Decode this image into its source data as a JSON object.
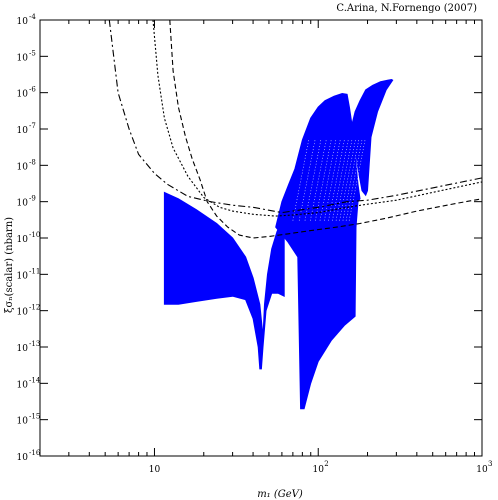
{
  "chart_data": {
    "type": "scatter",
    "title": "",
    "credit": "C.Arina, N.Fornengo (2007)",
    "xlabel": "m₁ (GeV)",
    "ylabel": "ξσₙ(scalar) (nbarn)",
    "x_scale": "log",
    "y_scale": "log",
    "xlim": [
      2,
      1000
    ],
    "ylim": [
      1e-16,
      0.0001
    ],
    "x_tick_values": [
      10,
      100,
      1000
    ],
    "x_tick_labels": [
      "10",
      "10",
      "10"
    ],
    "x_tick_exps": [
      "",
      "2",
      "3"
    ],
    "y_tick_values": [
      1e-16,
      1e-15,
      1e-14,
      1e-13,
      1e-12,
      1e-11,
      1e-10,
      1e-09,
      1e-08,
      1e-07,
      1e-06,
      1e-05,
      0.0001
    ],
    "y_tick_labels": [
      "10",
      "10",
      "10",
      "10",
      "10",
      "10",
      "10",
      "10",
      "10",
      "10",
      "10",
      "10",
      "10"
    ],
    "y_tick_exps": [
      "-16",
      "-15",
      "-14",
      "-13",
      "-12",
      "-11",
      "-10",
      "-9",
      "-8",
      "-7",
      "-6",
      "-5",
      "-4"
    ],
    "fill_color": "#0000ff",
    "regions": [
      {
        "part": "light mass band",
        "upper": [
          [
            11.5,
            1.8e-09
          ],
          [
            14,
            1.2e-09
          ],
          [
            18,
            6e-10
          ],
          [
            24,
            2.5e-10
          ],
          [
            30,
            1e-10
          ],
          [
            36,
            3e-11
          ],
          [
            40,
            8e-12
          ],
          [
            44,
            1.5e-12
          ],
          [
            46,
            2e-13
          ],
          [
            47,
            1.5e-12
          ],
          [
            49,
            1e-11
          ],
          [
            52,
            5e-11
          ],
          [
            56,
            1.5e-10
          ],
          [
            62,
            4e-10
          ]
        ],
        "lower": [
          [
            11.5,
            1.5e-12
          ],
          [
            14,
            1.5e-12
          ],
          [
            18,
            1.8e-12
          ],
          [
            24,
            2.2e-12
          ],
          [
            30,
            2.5e-12
          ],
          [
            36,
            2e-12
          ],
          [
            40,
            6e-13
          ],
          [
            43,
            1e-13
          ],
          [
            44,
            2.5e-14
          ],
          [
            45,
            2.5e-14
          ],
          [
            46,
            1e-13
          ],
          [
            48,
            1e-12
          ],
          [
            52,
            3e-12
          ],
          [
            57,
            3e-12
          ],
          [
            62,
            2.5e-12
          ]
        ]
      },
      {
        "part": "heavy mass band",
        "upper": [
          [
            55,
            2e-10
          ],
          [
            60,
            1e-09
          ],
          [
            66,
            3e-09
          ],
          [
            72,
            8e-09
          ],
          [
            80,
            5e-08
          ],
          [
            90,
            2e-07
          ],
          [
            100,
            4e-07
          ],
          [
            110,
            6e-07
          ],
          [
            125,
            8e-07
          ],
          [
            140,
            9.5e-07
          ],
          [
            150,
            9e-07
          ],
          [
            155,
            4e-07
          ],
          [
            160,
            1.5e-07
          ],
          [
            168,
            2e-08
          ],
          [
            175,
            3e-09
          ],
          [
            180,
            1.2e-09
          ]
        ],
        "lower": [
          [
            55,
            2e-10
          ],
          [
            65,
            8e-11
          ],
          [
            75,
            3e-11
          ],
          [
            78,
            2e-15
          ],
          [
            82,
            2e-15
          ],
          [
            90,
            1e-14
          ],
          [
            100,
            4e-14
          ],
          [
            120,
            1.5e-13
          ],
          [
            145,
            4e-13
          ],
          [
            168,
            7e-13
          ],
          [
            170,
            2e-10
          ],
          [
            175,
            1e-09
          ],
          [
            180,
            1.2e-09
          ]
        ]
      },
      {
        "part": "high mass branch",
        "upper": [
          [
            158,
            1e-07
          ],
          [
            168,
            3e-07
          ],
          [
            180,
            6e-07
          ],
          [
            195,
            1.2e-06
          ],
          [
            215,
            1.6e-06
          ],
          [
            240,
            2e-06
          ],
          [
            265,
            2.2e-06
          ],
          [
            280,
            2.3e-06
          ],
          [
            285,
            2.2e-06
          ]
        ],
        "lower": [
          [
            158,
            3e-08
          ],
          [
            168,
            3e-08
          ],
          [
            175,
            8e-09
          ],
          [
            185,
            2e-09
          ],
          [
            195,
            1.5e-09
          ],
          [
            200,
            2e-09
          ],
          [
            210,
            6e-08
          ],
          [
            230,
            3e-07
          ],
          [
            260,
            1.2e-06
          ],
          [
            285,
            2.2e-06
          ]
        ]
      }
    ],
    "limit_curves": [
      {
        "style": "dash-dot",
        "points": [
          [
            5.3,
            0.0001
          ],
          [
            6,
            1e-06
          ],
          [
            7,
            1e-07
          ],
          [
            8,
            2e-08
          ],
          [
            10,
            6e-09
          ],
          [
            12,
            3e-09
          ],
          [
            16,
            1.4e-09
          ],
          [
            22,
            1e-09
          ],
          [
            30,
            8e-10
          ],
          [
            40,
            7e-10
          ],
          [
            60,
            5e-10
          ],
          [
            80,
            6e-10
          ],
          [
            100,
            7e-10
          ],
          [
            150,
            1e-09
          ],
          [
            200,
            1.1e-09
          ],
          [
            300,
            1.5e-09
          ],
          [
            500,
            2.4e-09
          ],
          [
            1000,
            4.5e-09
          ]
        ]
      },
      {
        "style": "dotted",
        "points": [
          [
            9.8,
            0.0001
          ],
          [
            10.5,
            3e-06
          ],
          [
            11.5,
            2e-07
          ],
          [
            13,
            3e-08
          ],
          [
            16,
            5e-09
          ],
          [
            20,
            1.3e-09
          ],
          [
            25,
            7e-10
          ],
          [
            30,
            5.5e-10
          ],
          [
            40,
            4.5e-10
          ],
          [
            55,
            4e-10
          ],
          [
            70,
            4.3e-10
          ],
          [
            100,
            5e-10
          ],
          [
            150,
            7e-10
          ],
          [
            200,
            8.5e-10
          ],
          [
            300,
            1.1e-09
          ],
          [
            500,
            1.8e-09
          ],
          [
            1000,
            3.5e-09
          ]
        ]
      },
      {
        "style": "dashed",
        "points": [
          [
            12.4,
            0.0001
          ],
          [
            13,
            4e-06
          ],
          [
            14,
            4e-07
          ],
          [
            15.5,
            6e-08
          ],
          [
            17,
            1.5e-08
          ],
          [
            19,
            4e-09
          ],
          [
            21,
            1e-09
          ],
          [
            24,
            4e-10
          ],
          [
            28,
            2e-10
          ],
          [
            33,
            1.2e-10
          ],
          [
            40,
            1e-10
          ],
          [
            50,
            1.1e-10
          ],
          [
            65,
            1.3e-10
          ],
          [
            90,
            1.6e-10
          ],
          [
            130,
            2e-10
          ],
          [
            180,
            2.5e-10
          ],
          [
            260,
            3.5e-10
          ],
          [
            400,
            5.5e-10
          ],
          [
            700,
            9e-10
          ],
          [
            1000,
            1.2e-09
          ]
        ]
      }
    ]
  }
}
